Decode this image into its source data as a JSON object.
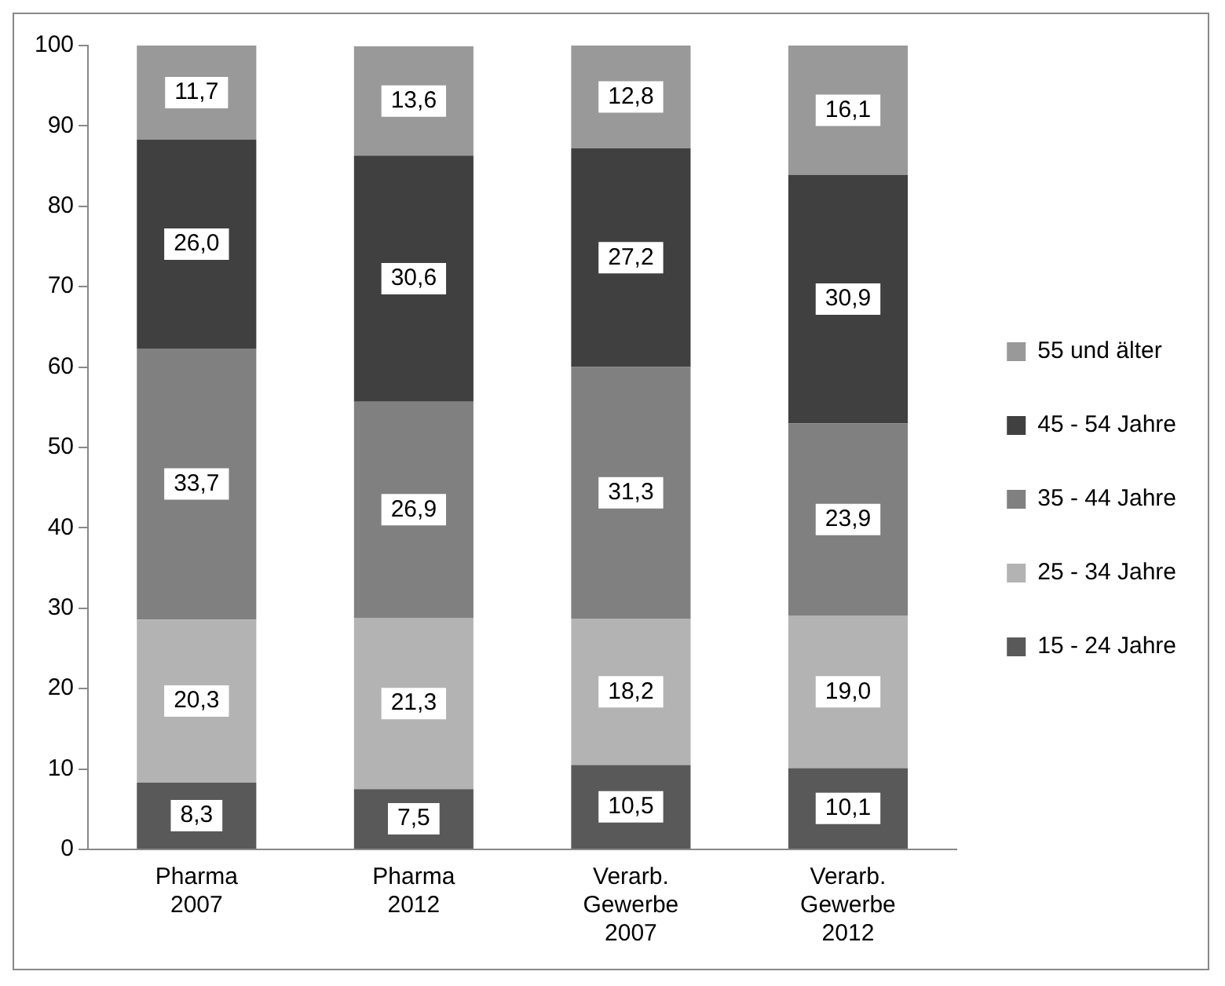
{
  "chart_data": {
    "type": "bar",
    "stacked": true,
    "categories": [
      "Pharma 2007",
      "Pharma 2012",
      "Verarb. Gewerbe 2007",
      "Verarb. Gewerbe 2012"
    ],
    "series": [
      {
        "name": "15 - 24 Jahre",
        "color": "#595959",
        "values": [
          8.3,
          7.5,
          10.5,
          10.1
        ],
        "value_labels": [
          "8,3",
          "7,5",
          "10,5",
          "10,1"
        ]
      },
      {
        "name": "25 - 34 Jahre",
        "color": "#b3b3b3",
        "values": [
          20.3,
          21.3,
          18.2,
          19.0
        ],
        "value_labels": [
          "20,3",
          "21,3",
          "18,2",
          "19,0"
        ]
      },
      {
        "name": "35 - 44 Jahre",
        "color": "#808080",
        "values": [
          33.7,
          26.9,
          31.3,
          23.9
        ],
        "value_labels": [
          "33,7",
          "26,9",
          "31,3",
          "23,9"
        ]
      },
      {
        "name": "45 - 54 Jahre",
        "color": "#404040",
        "values": [
          26.0,
          30.6,
          27.2,
          30.9
        ],
        "value_labels": [
          "26,0",
          "30,6",
          "27,2",
          "30,9"
        ]
      },
      {
        "name": "55 und älter",
        "color": "#999999",
        "values": [
          11.7,
          13.6,
          12.8,
          16.1
        ],
        "value_labels": [
          "11,7",
          "13,6",
          "12,8",
          "16,1"
        ]
      }
    ],
    "ylim": [
      0,
      100
    ],
    "yticks": [
      0,
      10,
      20,
      30,
      40,
      50,
      60,
      70,
      80,
      90,
      100
    ],
    "grid": false,
    "legend": "right"
  }
}
